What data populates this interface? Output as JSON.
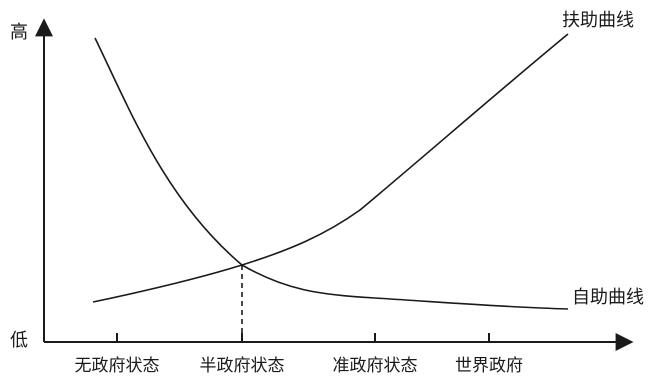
{
  "axes": {
    "y_top_label": "高",
    "y_bottom_label": "低"
  },
  "curves": {
    "help_curve_label": "扶助曲线",
    "self_help_curve_label": "自助曲线"
  },
  "x_axis": {
    "ticks": [
      "无政府状态",
      "半政府状态",
      "准政府状态",
      "世界政府"
    ]
  }
}
